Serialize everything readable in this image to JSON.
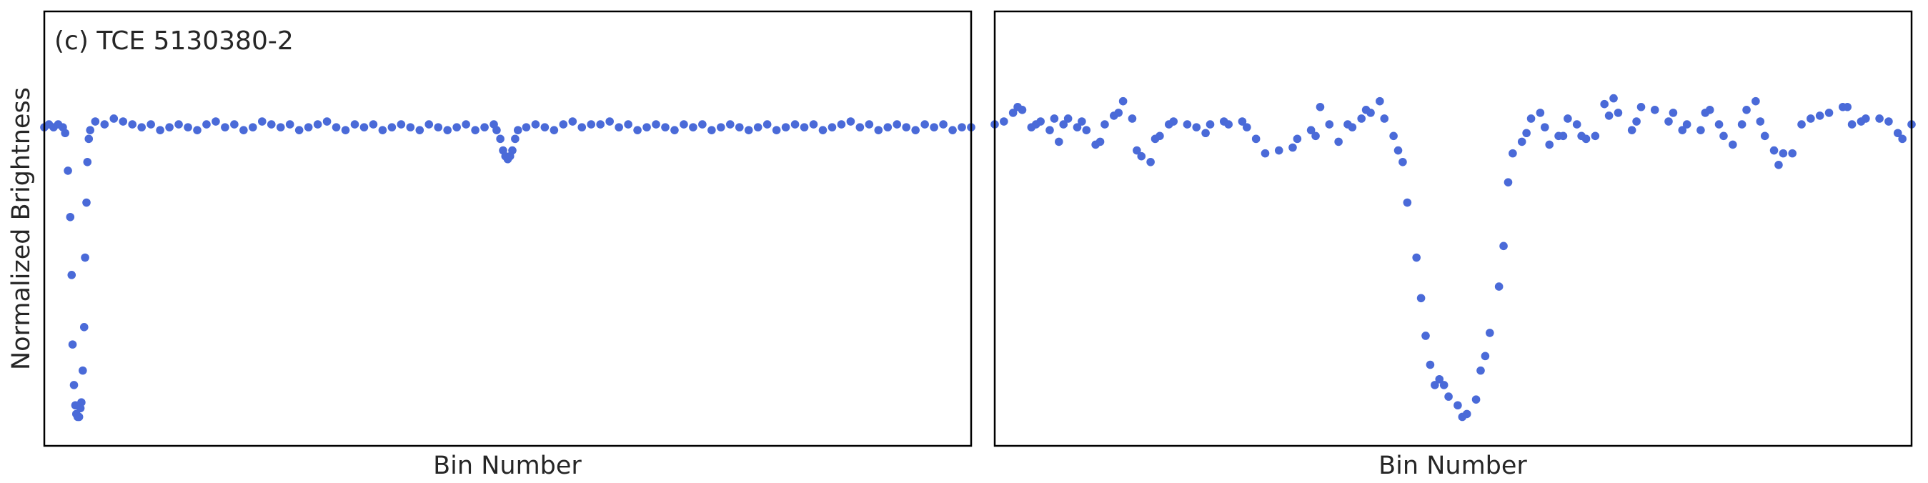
{
  "chart_data": [
    {
      "type": "scatter",
      "title": "(c) TCE 5130380-2",
      "xlabel": "Bin Number",
      "ylabel": "Normalized Brightness",
      "color": "#4a6ad8",
      "xlim": [
        0,
        2000
      ],
      "ylim": [
        -1.1,
        0.4
      ],
      "x": [
        0,
        10,
        20,
        30,
        40,
        45,
        51,
        56,
        59,
        61,
        64,
        67,
        69,
        72,
        75,
        78,
        80,
        83,
        86,
        88,
        91,
        93,
        96,
        99,
        110,
        130,
        150,
        170,
        190,
        210,
        230,
        250,
        270,
        290,
        310,
        330,
        350,
        370,
        390,
        410,
        430,
        450,
        470,
        490,
        510,
        530,
        550,
        570,
        590,
        610,
        630,
        650,
        670,
        690,
        710,
        730,
        750,
        770,
        790,
        810,
        830,
        850,
        870,
        890,
        910,
        930,
        950,
        970,
        976,
        984,
        990,
        995,
        1000,
        1005,
        1010,
        1016,
        1022,
        1040,
        1060,
        1080,
        1100,
        1120,
        1140,
        1160,
        1180,
        1200,
        1220,
        1240,
        1260,
        1280,
        1300,
        1320,
        1340,
        1360,
        1380,
        1400,
        1420,
        1440,
        1460,
        1480,
        1500,
        1520,
        1540,
        1560,
        1580,
        1600,
        1620,
        1640,
        1660,
        1680,
        1700,
        1720,
        1740,
        1760,
        1780,
        1800,
        1820,
        1840,
        1860,
        1880,
        1900,
        1920,
        1940,
        1960,
        1980,
        2000
      ],
      "values": [
        0.0,
        0.01,
        0.0,
        0.01,
        0.0,
        -0.02,
        -0.15,
        -0.31,
        -0.51,
        -0.75,
        -0.89,
        -0.96,
        -0.99,
        -1.0,
        -1.0,
        -0.97,
        -0.95,
        -0.84,
        -0.69,
        -0.45,
        -0.26,
        -0.12,
        -0.04,
        -0.01,
        0.02,
        0.01,
        0.03,
        0.02,
        0.01,
        0.0,
        0.01,
        -0.01,
        0.0,
        0.01,
        0.0,
        -0.01,
        0.01,
        0.02,
        0.0,
        0.01,
        -0.01,
        0.0,
        0.02,
        0.01,
        0.0,
        0.01,
        -0.01,
        0.0,
        0.01,
        0.02,
        0.0,
        -0.01,
        0.01,
        0.0,
        0.01,
        -0.01,
        0.0,
        0.01,
        0.0,
        -0.01,
        0.01,
        0.0,
        -0.01,
        0.0,
        0.01,
        -0.01,
        0.0,
        0.01,
        -0.01,
        -0.04,
        -0.08,
        -0.1,
        -0.11,
        -0.1,
        -0.08,
        -0.04,
        -0.01,
        0.0,
        0.01,
        0.0,
        -0.01,
        0.01,
        0.02,
        0.0,
        0.01,
        0.01,
        0.02,
        0.0,
        0.01,
        -0.01,
        0.0,
        0.01,
        0.0,
        -0.01,
        0.01,
        0.0,
        0.01,
        -0.01,
        0.0,
        0.01,
        0.0,
        -0.01,
        0.0,
        0.01,
        -0.01,
        0.0,
        0.01,
        0.0,
        0.01,
        -0.01,
        0.0,
        0.01,
        0.02,
        0.0,
        0.01,
        -0.01,
        0.0,
        0.01,
        0.0,
        -0.01,
        0.01,
        0.0,
        0.01,
        -0.01,
        0.0,
        0.0
      ]
    },
    {
      "type": "scatter",
      "xlabel": "Bin Number",
      "color": "#4a6ad8",
      "xlim": [
        0,
        200
      ],
      "ylim": [
        -1.1,
        0.4
      ],
      "x": [
        0,
        2,
        4,
        5,
        6,
        8,
        9,
        10,
        12,
        13,
        14,
        15,
        16,
        18,
        19,
        20,
        22,
        23,
        24,
        26,
        27,
        28,
        30,
        31,
        32,
        34,
        35,
        36,
        38,
        39,
        42,
        44,
        46,
        47,
        50,
        51,
        54,
        55,
        57,
        59,
        62,
        65,
        66,
        69,
        70,
        71,
        73,
        75,
        77,
        78,
        80,
        81,
        82,
        84,
        85,
        87,
        88,
        89,
        90,
        92,
        93,
        94,
        95,
        96,
        97,
        98,
        99,
        101,
        102,
        103,
        105,
        106,
        107,
        108,
        110,
        111,
        112,
        113,
        115,
        116,
        117,
        119,
        120,
        121,
        123,
        124,
        125,
        127,
        128,
        129,
        131,
        133,
        134,
        135,
        136,
        139,
        140,
        141,
        144,
        147,
        148,
        150,
        151,
        154,
        155,
        156,
        158,
        159,
        161,
        163,
        164,
        166,
        167,
        168,
        170,
        171,
        172,
        174,
        176,
        178,
        180,
        182,
        185,
        186,
        187,
        189,
        190,
        193,
        195,
        197,
        198,
        200
      ],
      "values": [
        0.01,
        0.02,
        0.05,
        0.07,
        0.06,
        0.0,
        0.01,
        0.02,
        -0.01,
        0.03,
        -0.05,
        0.01,
        0.03,
        0.0,
        0.02,
        -0.01,
        -0.06,
        -0.05,
        0.01,
        0.04,
        0.05,
        0.09,
        0.03,
        -0.08,
        -0.1,
        -0.12,
        -0.04,
        -0.03,
        0.01,
        0.02,
        0.01,
        0.0,
        -0.02,
        0.01,
        0.02,
        0.01,
        0.02,
        0.0,
        -0.04,
        -0.09,
        -0.08,
        -0.07,
        -0.04,
        -0.01,
        -0.03,
        0.07,
        0.01,
        -0.05,
        0.01,
        0.0,
        0.03,
        0.06,
        0.05,
        0.09,
        0.03,
        -0.03,
        -0.08,
        -0.12,
        -0.26,
        -0.45,
        -0.59,
        -0.72,
        -0.82,
        -0.89,
        -0.87,
        -0.89,
        -0.93,
        -0.96,
        -1.0,
        -0.99,
        -0.94,
        -0.84,
        -0.79,
        -0.71,
        -0.55,
        -0.41,
        -0.19,
        -0.09,
        -0.05,
        -0.02,
        0.03,
        0.05,
        0.0,
        -0.06,
        -0.03,
        -0.03,
        0.03,
        0.01,
        -0.03,
        -0.04,
        -0.03,
        0.08,
        0.04,
        0.1,
        0.05,
        -0.01,
        0.02,
        0.07,
        0.06,
        0.02,
        0.05,
        -0.01,
        0.01,
        -0.01,
        0.05,
        0.06,
        0.01,
        -0.03,
        -0.06,
        0.01,
        0.06,
        0.09,
        0.02,
        -0.03,
        -0.08,
        -0.13,
        -0.09,
        -0.09,
        0.01,
        0.03,
        0.04,
        0.05,
        0.07,
        0.07,
        0.01,
        0.02,
        0.03,
        0.03,
        0.02,
        -0.02,
        -0.04,
        0.01
      ]
    }
  ]
}
